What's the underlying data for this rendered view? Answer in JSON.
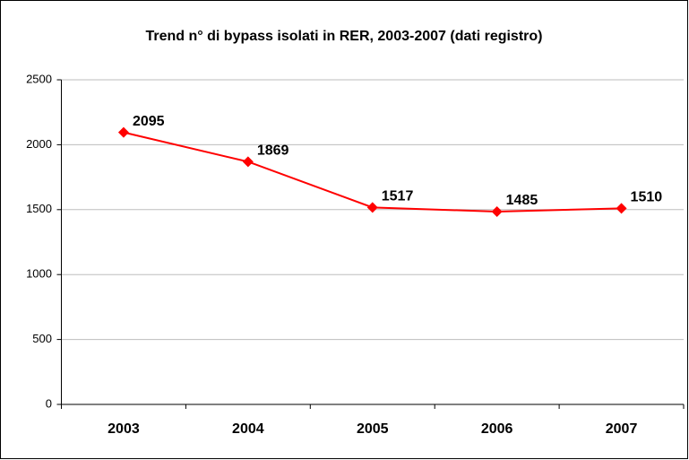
{
  "chart_data": {
    "type": "line",
    "title": "Trend n° di bypass isolati in RER, 2003-2007 (dati registro)",
    "categories": [
      "2003",
      "2004",
      "2005",
      "2006",
      "2007"
    ],
    "series": [
      {
        "name": "bypass isolati",
        "color": "#ff0000",
        "values": [
          2095,
          1869,
          1517,
          1485,
          1510
        ]
      }
    ],
    "ylim": [
      0,
      2500
    ],
    "yticks": [
      0,
      500,
      1000,
      1500,
      2000,
      2500
    ],
    "grid": true
  }
}
